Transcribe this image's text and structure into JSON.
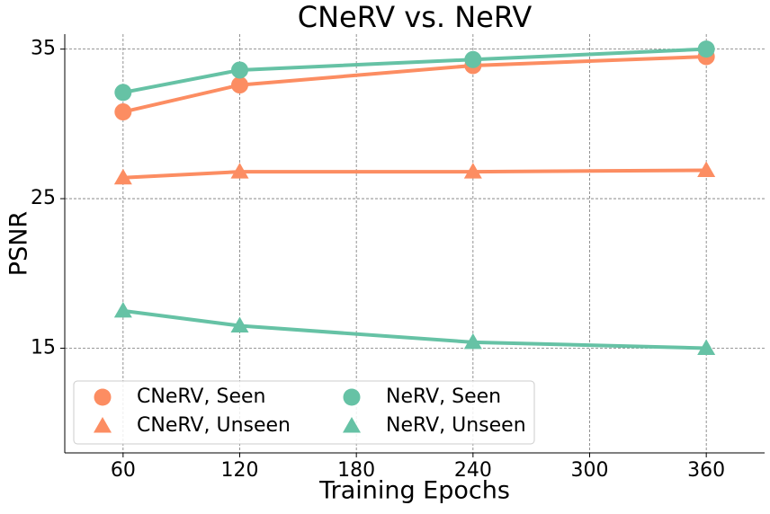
{
  "chart_data": {
    "type": "line",
    "title": "CNeRV vs. NeRV",
    "x_label": "Training Epochs",
    "y_label": "PSNR",
    "x": [
      60,
      120,
      240,
      360
    ],
    "series": [
      {
        "name": "CNeRV, Seen",
        "color": "#fc8d62",
        "marker": "circle",
        "values": [
          30.8,
          32.6,
          33.9,
          34.5
        ]
      },
      {
        "name": "CNeRV, Unseen",
        "color": "#fc8d62",
        "marker": "triangle",
        "values": [
          26.4,
          26.8,
          26.8,
          26.9
        ]
      },
      {
        "name": "NeRV, Seen",
        "color": "#66c2a5",
        "marker": "circle",
        "values": [
          32.1,
          33.6,
          34.3,
          35.0
        ]
      },
      {
        "name": "NeRV, Unseen",
        "color": "#66c2a5",
        "marker": "triangle",
        "values": [
          17.5,
          16.5,
          15.4,
          15.0
        ]
      }
    ],
    "xlim": [
      30,
      390
    ],
    "xticks": [
      60,
      120,
      180,
      240,
      300,
      360
    ],
    "ylim": [
      8,
      36
    ],
    "yticks": [
      15,
      25,
      35
    ],
    "grid": true,
    "legend": "lower left"
  }
}
